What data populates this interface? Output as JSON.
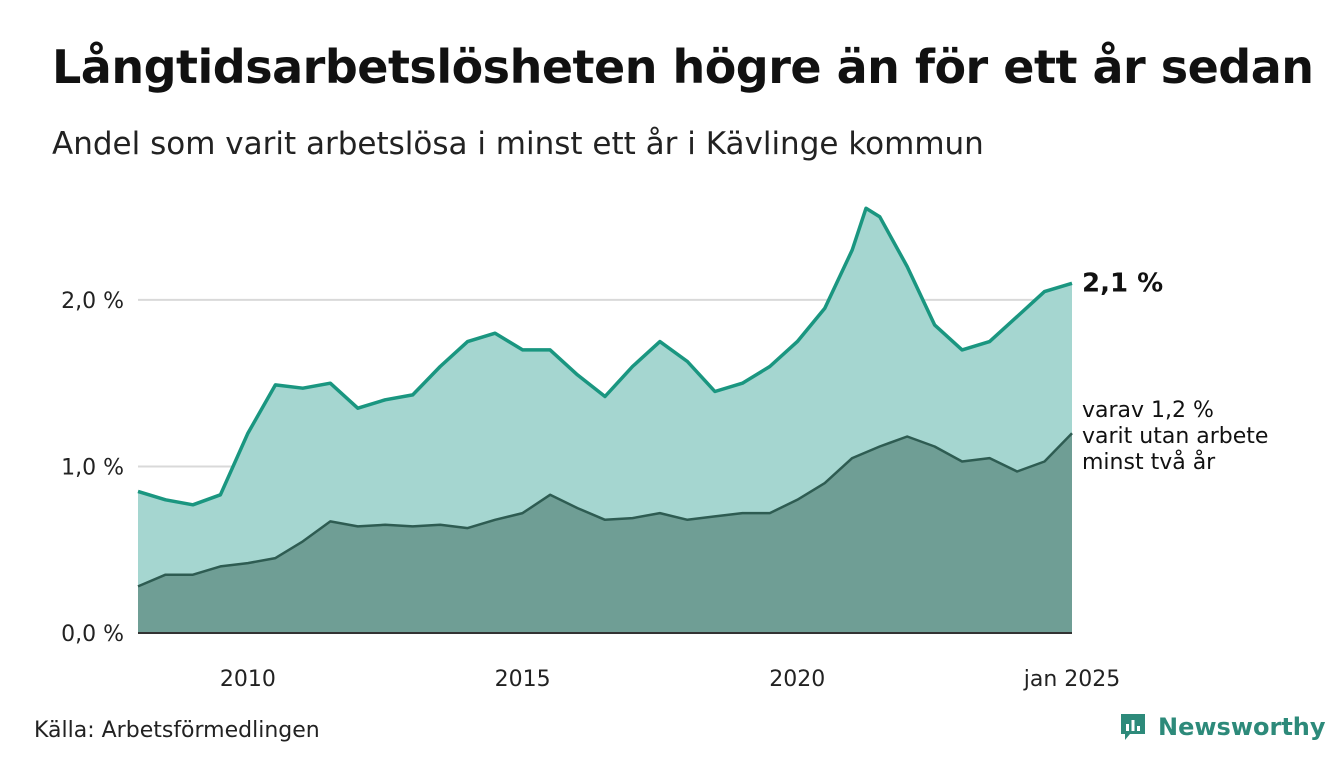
{
  "header": {
    "title": "Långtidsarbetslösheten högre än för ett år sedan",
    "subtitle": "Andel som varit arbetslösa i minst ett år i Kävlinge kommun"
  },
  "footer": {
    "source": "Källa: Arbetsförmedlingen",
    "brand": "Newsworthy"
  },
  "colors": {
    "total_line": "#1a9680",
    "total_fill": "#a5d6d0",
    "long_line": "#2e5c52",
    "long_fill": "#6f9e95",
    "grid": "#d9d9d9"
  },
  "chart_data": {
    "type": "area",
    "x_start": "2008-01",
    "x_end": "2025-01",
    "ylim": [
      0,
      2.6
    ],
    "y_ticks": [
      0,
      1,
      2
    ],
    "y_tick_labels": [
      "0,0 %",
      "1,0 %",
      "2,0 %"
    ],
    "x_ticks": [
      2010,
      2015,
      2020,
      2025
    ],
    "x_tick_labels": [
      "2010",
      "2015",
      "2020",
      "jan 2025"
    ],
    "series": [
      {
        "key": "total",
        "points": [
          [
            "2008-01",
            0.85
          ],
          [
            "2008-07",
            0.8
          ],
          [
            "2009-01",
            0.77
          ],
          [
            "2009-07",
            0.83
          ],
          [
            "2010-01",
            1.2
          ],
          [
            "2010-07",
            1.49
          ],
          [
            "2011-01",
            1.47
          ],
          [
            "2011-07",
            1.5
          ],
          [
            "2012-01",
            1.35
          ],
          [
            "2012-07",
            1.4
          ],
          [
            "2013-01",
            1.43
          ],
          [
            "2013-07",
            1.6
          ],
          [
            "2014-01",
            1.75
          ],
          [
            "2014-07",
            1.8
          ],
          [
            "2015-01",
            1.7
          ],
          [
            "2015-07",
            1.7
          ],
          [
            "2016-01",
            1.55
          ],
          [
            "2016-07",
            1.42
          ],
          [
            "2017-01",
            1.6
          ],
          [
            "2017-07",
            1.75
          ],
          [
            "2018-01",
            1.63
          ],
          [
            "2018-07",
            1.45
          ],
          [
            "2019-01",
            1.5
          ],
          [
            "2019-07",
            1.6
          ],
          [
            "2020-01",
            1.75
          ],
          [
            "2020-07",
            1.95
          ],
          [
            "2021-01",
            2.3
          ],
          [
            "2021-04",
            2.55
          ],
          [
            "2021-07",
            2.5
          ],
          [
            "2022-01",
            2.2
          ],
          [
            "2022-07",
            1.85
          ],
          [
            "2023-01",
            1.7
          ],
          [
            "2023-07",
            1.75
          ],
          [
            "2024-01",
            1.9
          ],
          [
            "2024-07",
            2.05
          ],
          [
            "2025-01",
            2.1
          ]
        ],
        "end_label": "2,1 %"
      },
      {
        "key": "long",
        "points": [
          [
            "2008-01",
            0.28
          ],
          [
            "2008-07",
            0.35
          ],
          [
            "2009-01",
            0.35
          ],
          [
            "2009-07",
            0.4
          ],
          [
            "2010-01",
            0.42
          ],
          [
            "2010-07",
            0.45
          ],
          [
            "2011-01",
            0.55
          ],
          [
            "2011-07",
            0.67
          ],
          [
            "2012-01",
            0.64
          ],
          [
            "2012-07",
            0.65
          ],
          [
            "2013-01",
            0.64
          ],
          [
            "2013-07",
            0.65
          ],
          [
            "2014-01",
            0.63
          ],
          [
            "2014-07",
            0.68
          ],
          [
            "2015-01",
            0.72
          ],
          [
            "2015-07",
            0.83
          ],
          [
            "2016-01",
            0.75
          ],
          [
            "2016-07",
            0.68
          ],
          [
            "2017-01",
            0.69
          ],
          [
            "2017-07",
            0.72
          ],
          [
            "2018-01",
            0.68
          ],
          [
            "2018-07",
            0.7
          ],
          [
            "2019-01",
            0.72
          ],
          [
            "2019-07",
            0.72
          ],
          [
            "2020-01",
            0.8
          ],
          [
            "2020-07",
            0.9
          ],
          [
            "2021-01",
            1.05
          ],
          [
            "2021-07",
            1.12
          ],
          [
            "2022-01",
            1.18
          ],
          [
            "2022-07",
            1.12
          ],
          [
            "2023-01",
            1.03
          ],
          [
            "2023-07",
            1.05
          ],
          [
            "2024-01",
            0.97
          ],
          [
            "2024-07",
            1.03
          ],
          [
            "2025-01",
            1.2
          ]
        ],
        "end_label": [
          "varav 1,2 %",
          "varit utan arbete",
          "minst två år"
        ]
      }
    ]
  }
}
